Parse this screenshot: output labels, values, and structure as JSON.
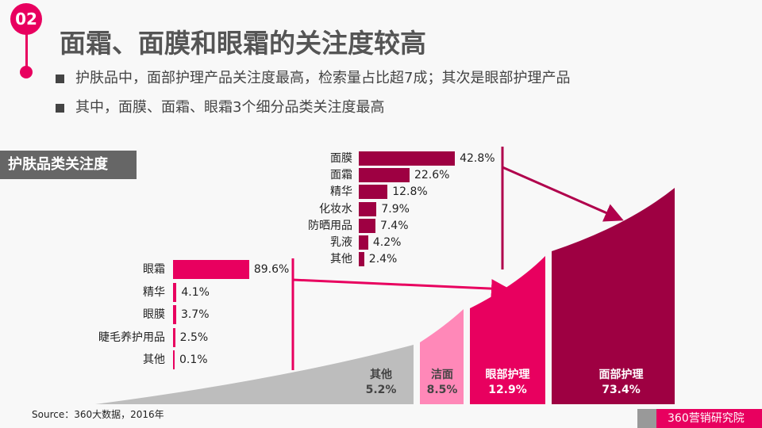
{
  "header": {
    "badge": "02",
    "title": "面霜、面膜和眼霜的关注度较高",
    "bullets": [
      "护肤品中，面部护理产品关注度最高，检索量占比超7成；其次是眼部护理产品",
      "其中，面膜、面霜、眼霜3个细分品类关注度最高"
    ]
  },
  "section_label": "护肤品类关注度",
  "source": "Source：360大数据，2016年",
  "logo": "360营销研究院",
  "colors": {
    "accent": "#e8005f",
    "dark": "#9e0042",
    "pink": "#ff88b8",
    "gray": "#bdbdbd"
  },
  "chart_data": [
    {
      "type": "bar",
      "orientation": "horizontal",
      "categories": [
        "面膜",
        "面霜",
        "精华",
        "化妆水",
        "防晒用品",
        "乳液",
        "其他"
      ],
      "values": [
        42.8,
        22.6,
        12.8,
        7.9,
        7.4,
        4.2,
        2.4
      ],
      "labels": [
        "42.8%",
        "22.6%",
        "12.8%",
        "7.9%",
        "7.4%",
        "4.2%",
        "2.4%"
      ],
      "color": "#9e0042",
      "parent": "面部护理"
    },
    {
      "type": "bar",
      "orientation": "horizontal",
      "categories": [
        "眼霜",
        "精华",
        "眼膜",
        "睫毛养护用品",
        "其他"
      ],
      "values": [
        89.6,
        4.1,
        3.7,
        2.5,
        0.1
      ],
      "labels": [
        "89.6%",
        "4.1%",
        "3.7%",
        "2.5%",
        "0.1%"
      ],
      "color": "#e8005f",
      "parent": "眼部护理"
    },
    {
      "type": "area",
      "categories": [
        "其他",
        "洁面",
        "眼部护理",
        "面部护理"
      ],
      "values": [
        5.2,
        8.5,
        12.9,
        73.4
      ],
      "labels": [
        "5.2%",
        "8.5%",
        "12.9%",
        "73.4%"
      ]
    }
  ]
}
